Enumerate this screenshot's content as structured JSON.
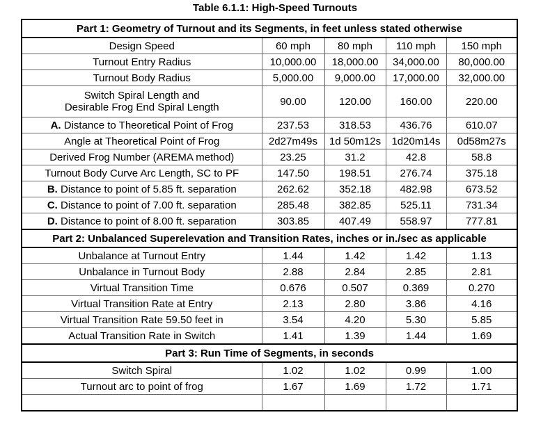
{
  "title": "Table 6.1.1:  High-Speed Turnouts",
  "part1": {
    "header": "Part 1:  Geometry of Turnout and its Segments, in feet unless stated otherwise",
    "rows": [
      {
        "prefix": "",
        "label": "Design Speed",
        "values": [
          "60 mph",
          "80 mph",
          "110 mph",
          "150 mph"
        ]
      },
      {
        "prefix": "",
        "label": "Turnout Entry Radius",
        "values": [
          "10,000.00",
          "18,000.00",
          "34,000.00",
          "80,000.00"
        ]
      },
      {
        "prefix": "",
        "label": "Turnout Body Radius",
        "values": [
          "5,000.00",
          "9,000.00",
          "17,000.00",
          "32,000.00"
        ]
      },
      {
        "prefix": "",
        "label": "Switch Spiral Length and",
        "label2": "Desirable Frog End Spiral Length",
        "values": [
          "90.00",
          "120.00",
          "160.00",
          "220.00"
        ]
      },
      {
        "prefix": "A.",
        "label": "Distance to Theoretical Point of Frog",
        "values": [
          "237.53",
          "318.53",
          "436.76",
          "610.07"
        ]
      },
      {
        "prefix": "",
        "label": "Angle at Theoretical Point of Frog",
        "values": [
          "2d27m49s",
          "1d 50m12s",
          "1d20m14s",
          "0d58m27s"
        ]
      },
      {
        "prefix": "",
        "label": "Derived Frog Number (AREMA method)",
        "values": [
          "23.25",
          "31.2",
          "42.8",
          "58.8"
        ]
      },
      {
        "prefix": "",
        "label": "Turnout Body Curve Arc Length, SC to PF",
        "values": [
          "147.50",
          "198.51",
          "276.74",
          "375.18"
        ]
      },
      {
        "prefix": "B.",
        "label": "Distance to point of 5.85 ft. separation",
        "values": [
          "262.62",
          "352.18",
          "482.98",
          "673.52"
        ]
      },
      {
        "prefix": "C.",
        "label": "Distance to point of 7.00 ft. separation",
        "values": [
          "285.48",
          "382.85",
          "525.11",
          "731.34"
        ]
      },
      {
        "prefix": "D.",
        "label": "Distance to point of 8.00 ft. separation",
        "values": [
          "303.85",
          "407.49",
          "558.97",
          "777.81"
        ]
      }
    ]
  },
  "part2": {
    "header": "Part 2:  Unbalanced Superelevation and Transition Rates, inches or in./sec as applicable",
    "rows": [
      {
        "label": "Unbalance at Turnout Entry",
        "values": [
          "1.44",
          "1.42",
          "1.42",
          "1.13"
        ]
      },
      {
        "label": "Unbalance in Turnout Body",
        "values": [
          "2.88",
          "2.84",
          "2.85",
          "2.81"
        ]
      },
      {
        "label": "Virtual Transition Time",
        "values": [
          "0.676",
          "0.507",
          "0.369",
          "0.270"
        ]
      },
      {
        "label": "Virtual Transition Rate at Entry",
        "values": [
          "2.13",
          "2.80",
          "3.86",
          "4.16"
        ]
      },
      {
        "label": "Virtual Transition Rate 59.50 feet in",
        "values": [
          "3.54",
          "4.20",
          "5.30",
          "5.85"
        ]
      },
      {
        "label": "Actual Transition Rate in Switch",
        "values": [
          "1.41",
          "1.39",
          "1.44",
          "1.69"
        ]
      }
    ]
  },
  "part3": {
    "header": "Part 3:  Run Time of Segments, in seconds",
    "rows": [
      {
        "label": "Switch Spiral",
        "values": [
          "1.02",
          "1.02",
          "0.99",
          "1.00"
        ]
      },
      {
        "label": "Turnout arc to point of frog",
        "values": [
          "1.67",
          "1.69",
          "1.72",
          "1.71"
        ]
      },
      {
        "label": "",
        "values": [
          "",
          "",
          "",
          ""
        ]
      }
    ]
  }
}
